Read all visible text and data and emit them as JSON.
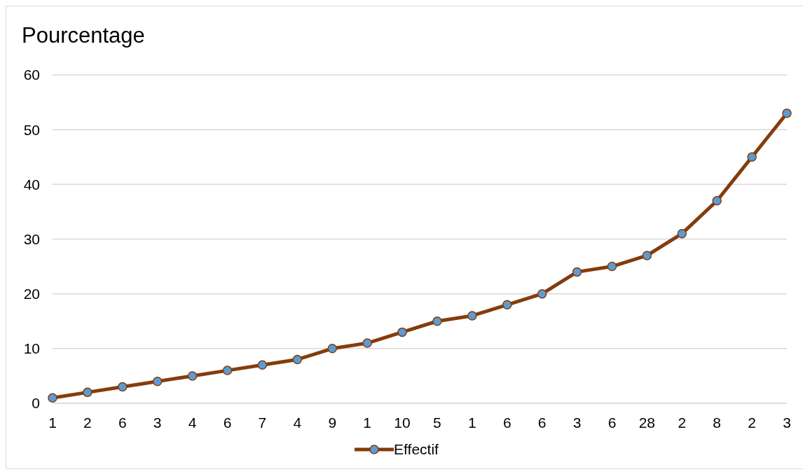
{
  "chart_data": {
    "type": "line",
    "title": "Pourcentage",
    "categories": [
      "1",
      "2",
      "6",
      "3",
      "4",
      "6",
      "7",
      "4",
      "9",
      "1",
      "10",
      "5",
      "1",
      "6",
      "6",
      "3",
      "6",
      "28",
      "2",
      "8",
      "2",
      "3"
    ],
    "series": [
      {
        "name": "Effectif",
        "color": "#843c0c",
        "values": [
          1,
          2,
          3,
          4,
          5,
          6,
          7,
          8,
          10,
          11,
          13,
          15,
          16,
          18,
          20,
          24,
          25,
          27,
          31,
          37,
          45,
          53
        ]
      }
    ],
    "ylim": [
      0,
      60
    ],
    "yticks": [
      0,
      10,
      20,
      30,
      40,
      50,
      60
    ],
    "grid": "y",
    "legend": "bottom",
    "marker": "circle",
    "line_style": "solid"
  }
}
